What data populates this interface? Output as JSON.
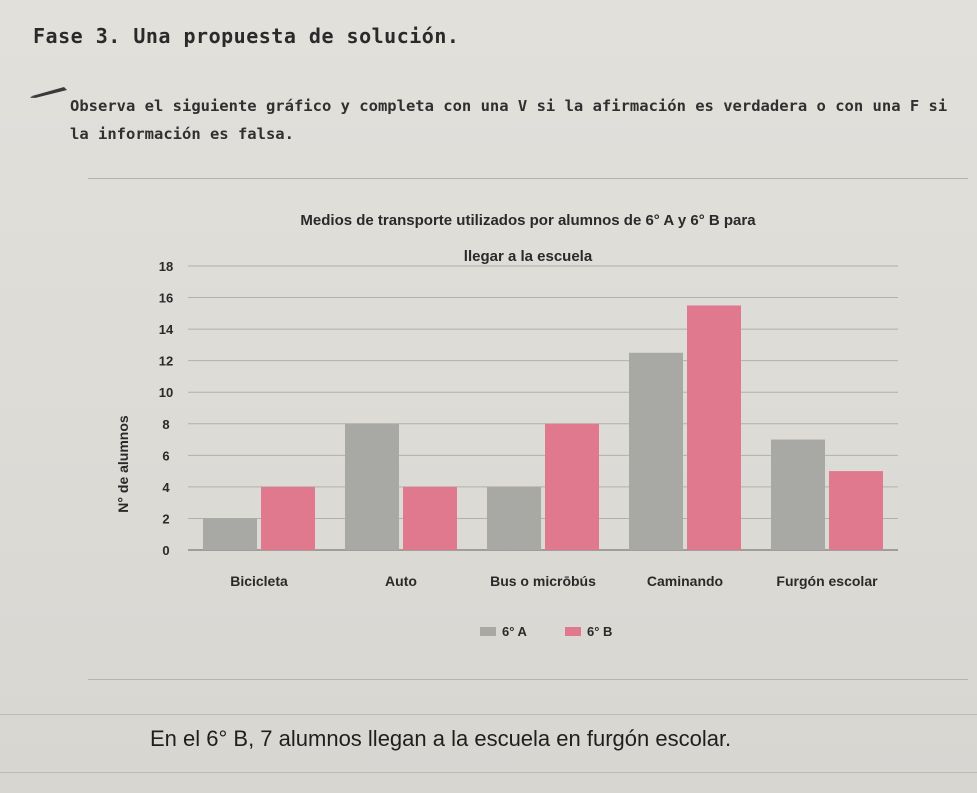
{
  "heading": "Fase 3. Una propuesta de solución.",
  "instruction": "Observa el siguiente gráfico y completa con una V si la afirmación es verdadera o con una F si la información es falsa.",
  "statement": "En el 6° B, 7 alumnos llegan a la escuela en furgón escolar.",
  "chart_data": {
    "type": "bar",
    "title_line1": "Medios de transporte utilizados por alumnos de 6° A y 6° B para",
    "title_line2": "llegar a la escuela",
    "xlabel": "",
    "ylabel": "N° de alumnos",
    "ylim": [
      0,
      18
    ],
    "yticks": [
      0,
      2,
      4,
      6,
      8,
      10,
      12,
      14,
      16,
      18
    ],
    "categories": [
      "Bicicleta",
      "Auto",
      "Bus o micrōbús",
      "Caminando",
      "Furgón escolar"
    ],
    "series": [
      {
        "name": "6° A",
        "color": "#a8a8a4",
        "values": [
          2,
          8,
          4,
          12.5,
          7
        ]
      },
      {
        "name": "6° B",
        "color": "#e0788e",
        "values": [
          4,
          4,
          8,
          15.5,
          5
        ]
      }
    ],
    "grid": true,
    "legend_position": "bottom-center"
  }
}
